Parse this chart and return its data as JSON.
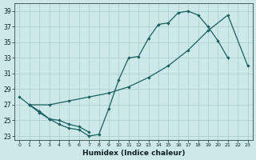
{
  "xlabel": "Humidex (Indice chaleur)",
  "bg_color": "#cce8e8",
  "grid_color": "#aacccc",
  "line_color": "#1a6060",
  "xlim": [
    -0.5,
    23.5
  ],
  "ylim": [
    22.5,
    40.0
  ],
  "xticks": [
    0,
    1,
    2,
    3,
    4,
    5,
    6,
    7,
    8,
    9,
    10,
    11,
    12,
    13,
    14,
    15,
    16,
    17,
    18,
    19,
    20,
    21,
    22,
    23
  ],
  "yticks": [
    23,
    25,
    27,
    29,
    31,
    33,
    35,
    37,
    39
  ],
  "curves": [
    {
      "x": [
        0,
        1,
        2,
        3,
        4,
        5,
        6,
        7,
        8,
        9,
        10,
        11,
        12,
        13,
        14,
        15,
        16,
        17,
        18,
        19,
        20,
        21
      ],
      "y": [
        28,
        27,
        26,
        25.2,
        24.5,
        24.0,
        23.8,
        23.0,
        23.2,
        26.5,
        30.2,
        33.0,
        33.2,
        35.5,
        37.3,
        37.5,
        38.8,
        39.0,
        38.5,
        37.0,
        35.2,
        33.0
      ]
    },
    {
      "x": [
        1,
        3,
        5,
        7,
        9,
        11,
        13,
        15,
        17,
        19,
        21,
        23
      ],
      "y": [
        27,
        27,
        27.5,
        28.0,
        28.5,
        29.3,
        30.5,
        32.0,
        34.0,
        36.5,
        38.5,
        32.0
      ]
    },
    {
      "x": [
        1,
        2,
        3,
        4,
        5,
        6,
        7
      ],
      "y": [
        27,
        26.2,
        25.2,
        25.0,
        24.5,
        24.2,
        23.5
      ]
    }
  ]
}
